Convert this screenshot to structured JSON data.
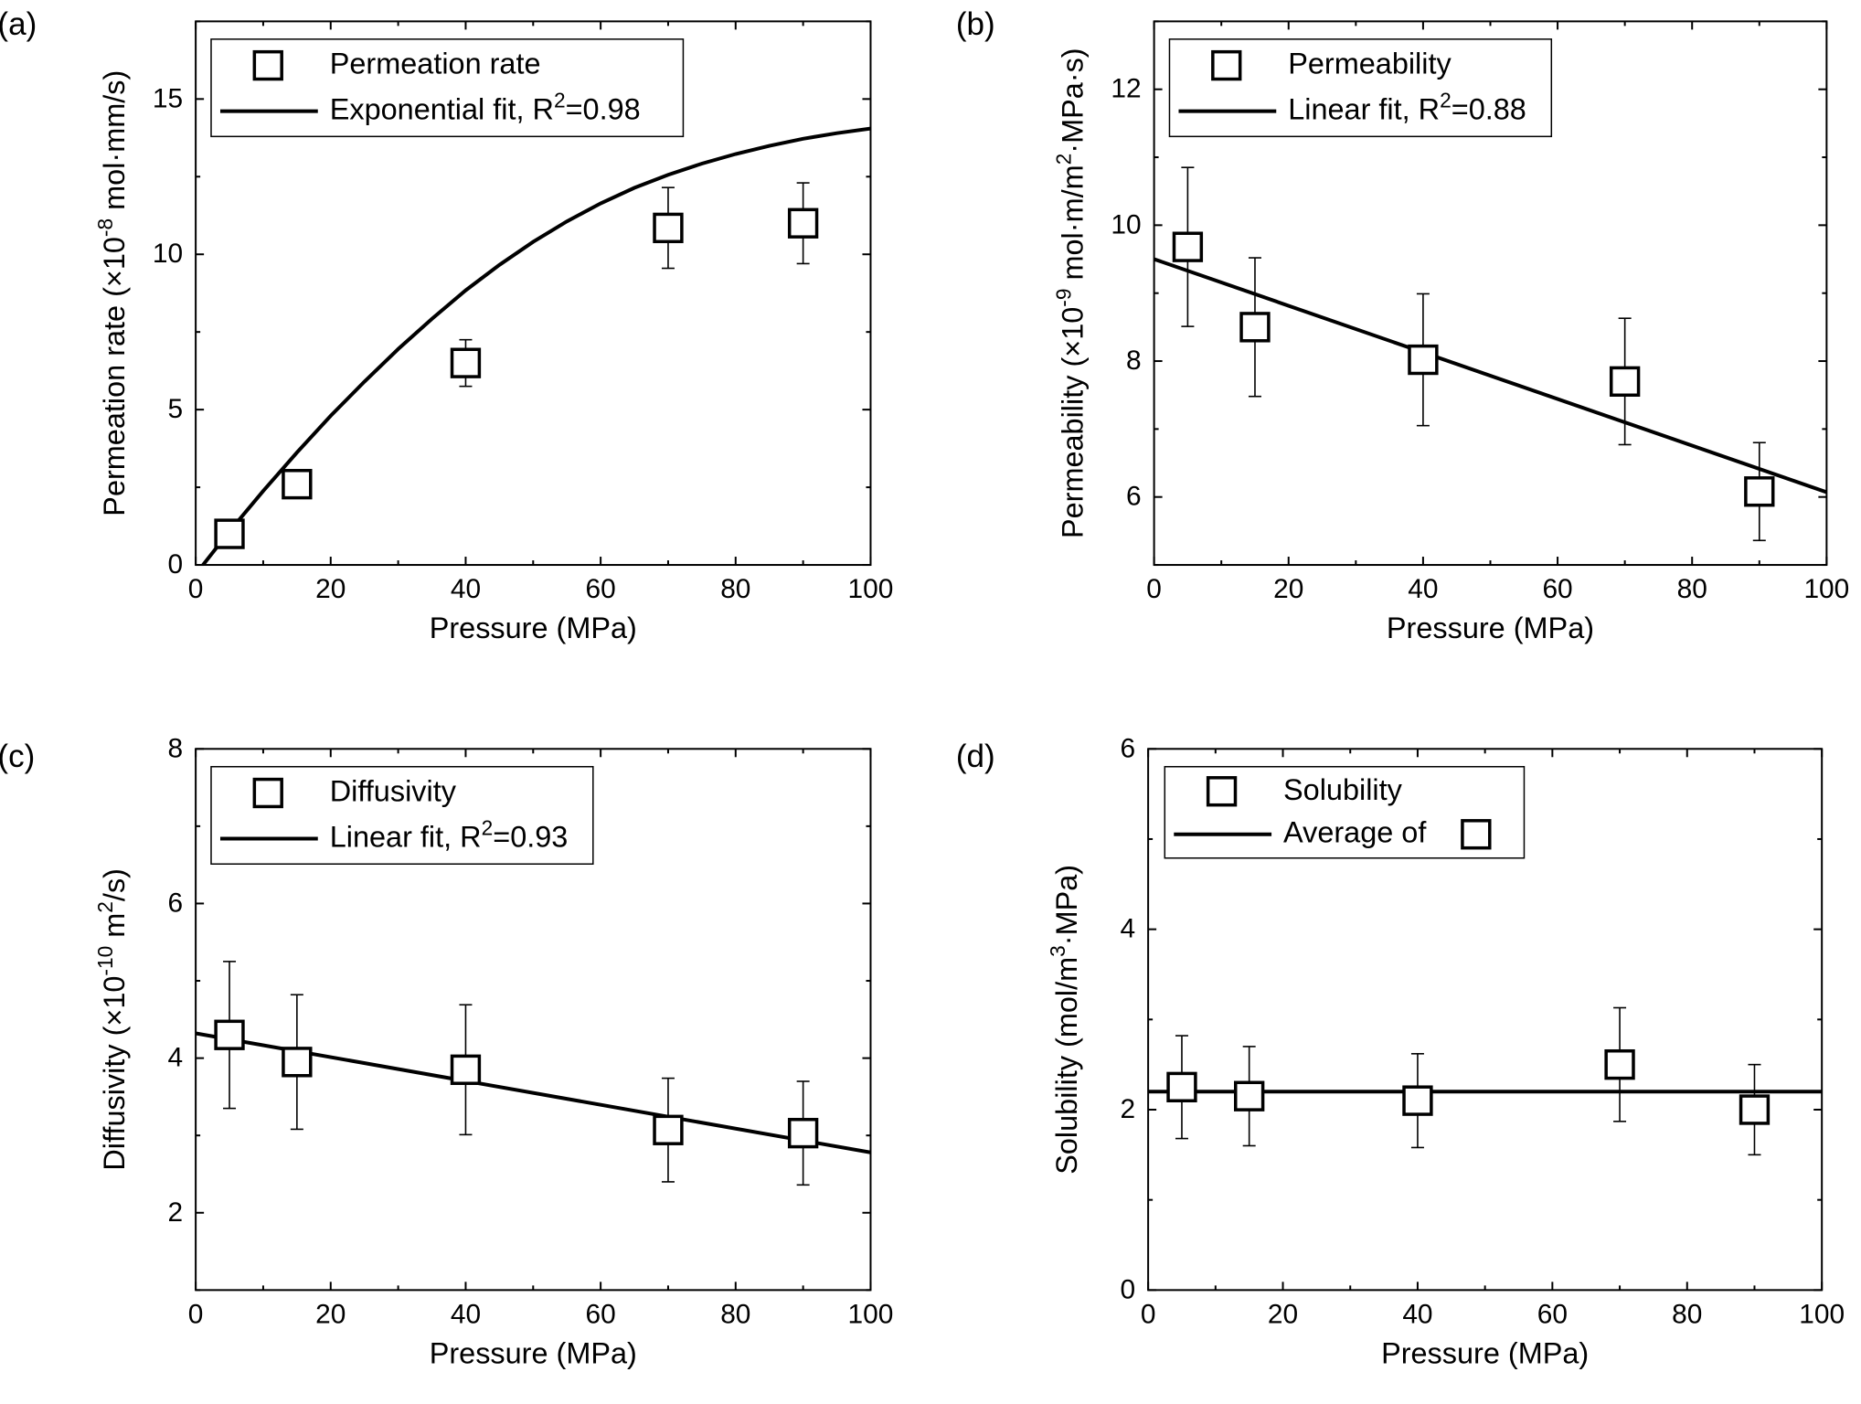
{
  "chart_data": [
    {
      "type": "scatter",
      "panel_label": "(a)",
      "xlabel": "Pressure (MPa)",
      "ylabel_parts": [
        "Permeation rate (×10",
        "-8",
        " mol·mm/s)"
      ],
      "xlim": [
        0,
        100
      ],
      "ylim": [
        0,
        17.5
      ],
      "xticks": [
        0,
        20,
        40,
        60,
        80,
        100
      ],
      "yticks": [
        0,
        5,
        10,
        15
      ],
      "series": [
        {
          "name": "Permeation rate",
          "x": [
            5,
            15,
            40,
            70,
            90
          ],
          "y": [
            1.0,
            2.6,
            6.5,
            10.85,
            11.0
          ],
          "err": [
            0.4,
            0.3,
            0.75,
            1.3,
            1.3
          ]
        }
      ],
      "fit": {
        "kind": "exponential",
        "x": [
          0,
          5,
          10,
          15,
          20,
          25,
          30,
          35,
          40,
          45,
          50,
          55,
          60,
          65,
          70,
          75,
          80,
          85,
          90,
          95,
          100
        ],
        "y": [
          -0.3,
          1.08,
          2.38,
          3.62,
          4.8,
          5.9,
          6.95,
          7.92,
          8.84,
          9.66,
          10.4,
          11.06,
          11.64,
          12.14,
          12.56,
          12.92,
          13.23,
          13.49,
          13.72,
          13.9,
          14.05
        ]
      },
      "legend": {
        "marker_label": "Permeation rate",
        "line_label_parts": [
          "Exponential fit, R",
          "2",
          "=0.98"
        ]
      }
    },
    {
      "type": "scatter",
      "panel_label": "(b)",
      "xlabel": "Pressure (MPa)",
      "ylabel_parts": [
        "Permeability (×10",
        "-9",
        " mol·m/m",
        "2",
        "·MPa·s)"
      ],
      "xlim": [
        0,
        100
      ],
      "ylim": [
        5,
        13
      ],
      "xticks": [
        0,
        20,
        40,
        60,
        80,
        100
      ],
      "yticks": [
        6,
        8,
        10,
        12
      ],
      "series": [
        {
          "name": "Permeability",
          "x": [
            5,
            15,
            40,
            70,
            90
          ],
          "y": [
            9.68,
            8.5,
            8.02,
            7.7,
            6.08
          ],
          "err": [
            1.17,
            1.02,
            0.97,
            0.93,
            0.72
          ]
        }
      ],
      "fit": {
        "kind": "linear",
        "x": [
          0,
          100
        ],
        "y": [
          9.5,
          6.07
        ]
      },
      "legend": {
        "marker_label": "Permeability",
        "line_label_parts": [
          "Linear fit, R",
          "2",
          "=0.88"
        ]
      }
    },
    {
      "type": "scatter",
      "panel_label": "(c)",
      "xlabel": "Pressure (MPa)",
      "ylabel_parts": [
        "Diffusivity (×10",
        "-10",
        " m",
        "2",
        "/s)"
      ],
      "xlim": [
        0,
        100
      ],
      "ylim": [
        1,
        8
      ],
      "xticks": [
        0,
        20,
        40,
        60,
        80,
        100
      ],
      "yticks": [
        2,
        4,
        6,
        8
      ],
      "series": [
        {
          "name": "Diffusivity",
          "x": [
            5,
            15,
            40,
            70,
            90
          ],
          "y": [
            4.3,
            3.95,
            3.85,
            3.07,
            3.03
          ],
          "err": [
            0.95,
            0.87,
            0.84,
            0.67,
            0.67
          ]
        }
      ],
      "fit": {
        "kind": "linear",
        "x": [
          0,
          100
        ],
        "y": [
          4.32,
          2.78
        ]
      },
      "legend": {
        "marker_label": "Diffusivity",
        "line_label_parts": [
          "Linear fit, R",
          "2",
          "=0.93"
        ]
      }
    },
    {
      "type": "scatter",
      "panel_label": "(d)",
      "xlabel": "Pressure (MPa)",
      "ylabel_parts": [
        "Solubility (mol/m",
        "3",
        "·MPa)"
      ],
      "xlim": [
        0,
        100
      ],
      "ylim": [
        0,
        6
      ],
      "xticks": [
        0,
        20,
        40,
        60,
        80,
        100
      ],
      "yticks": [
        0,
        2,
        4,
        6
      ],
      "series": [
        {
          "name": "Solubility",
          "x": [
            5,
            15,
            40,
            70,
            90
          ],
          "y": [
            2.25,
            2.15,
            2.1,
            2.5,
            2.0
          ],
          "err": [
            0.57,
            0.55,
            0.52,
            0.63,
            0.5
          ]
        }
      ],
      "fit": {
        "kind": "average",
        "x": [
          0,
          100
        ],
        "y": [
          2.2,
          2.2
        ]
      },
      "legend": {
        "marker_label": "Solubility",
        "line_label_parts": [
          "Average of"
        ]
      }
    }
  ]
}
